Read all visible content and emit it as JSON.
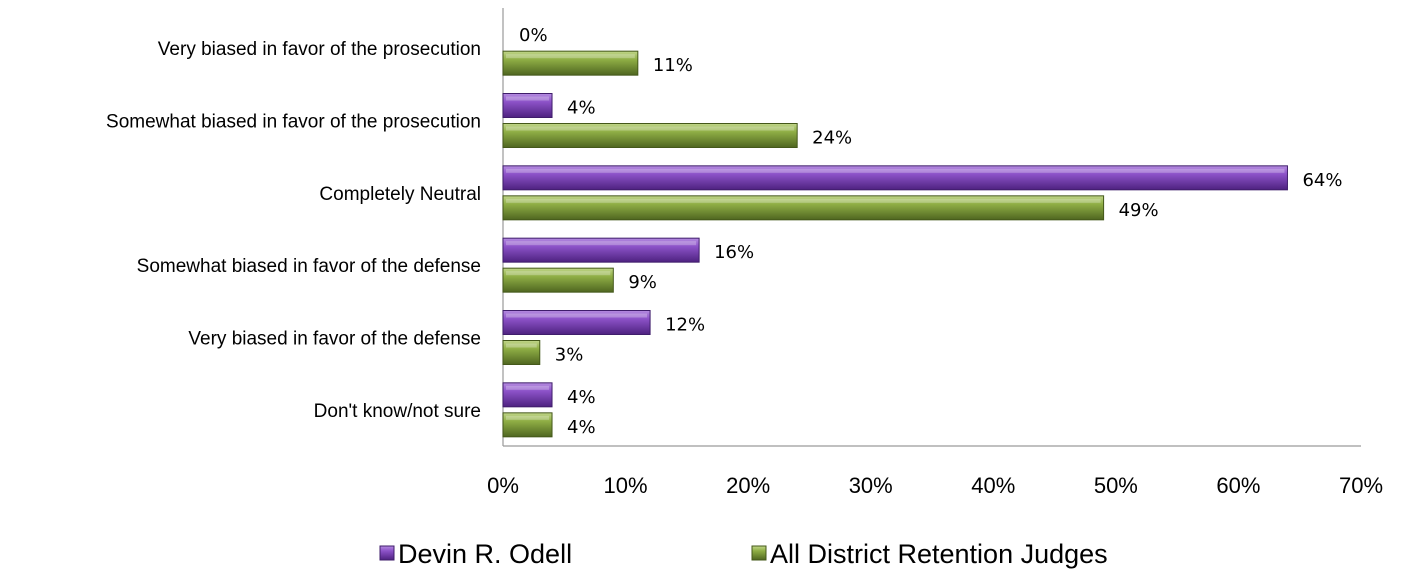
{
  "chart_data": {
    "type": "bar",
    "orientation": "horizontal",
    "categories": [
      "Very biased in favor of the prosecution",
      "Somewhat biased in favor of the prosecution",
      "Completely Neutral",
      "Somewhat biased in favor of the defense",
      "Very biased in favor of the defense",
      "Don't know/not sure"
    ],
    "series": [
      {
        "name": "Devin R. Odell",
        "values": [
          0,
          4,
          64,
          16,
          12,
          4
        ],
        "labels": [
          "0%",
          "4%",
          "64%",
          "16%",
          "12%",
          "4%"
        ],
        "color": "#7b3fb5"
      },
      {
        "name": "All District Retention Judges",
        "values": [
          11,
          24,
          49,
          9,
          3,
          4
        ],
        "labels": [
          "11%",
          "24%",
          "49%",
          "9%",
          "3%",
          "4%"
        ],
        "color": "#7f9a3a"
      }
    ],
    "xlim": [
      0,
      70
    ],
    "xticks": [
      0,
      10,
      20,
      30,
      40,
      50,
      60,
      70
    ],
    "xtick_labels": [
      "0%",
      "10%",
      "20%",
      "30%",
      "40%",
      "50%",
      "60%",
      "70%"
    ],
    "grid": false,
    "legend_position": "bottom"
  }
}
